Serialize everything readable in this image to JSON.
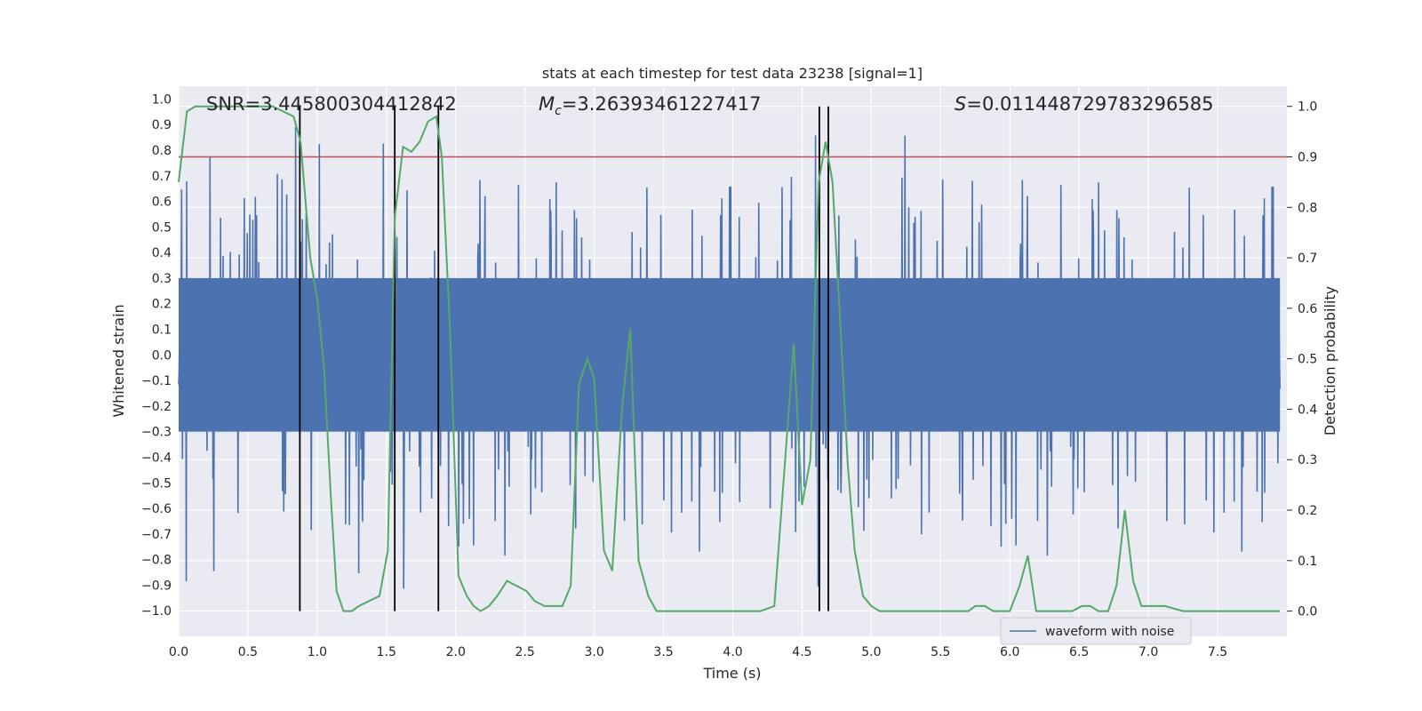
{
  "chart_data": {
    "type": "line",
    "title": "stats at each timestep for test data 23238 [signal=1]",
    "xlabel": "Time (s)",
    "ylabel": "Whitened strain",
    "y2label": "Detection probability",
    "xlim": [
      0.0,
      8.0
    ],
    "ylim": [
      -1.1,
      1.05
    ],
    "y2lim": [
      -0.05,
      1.04
    ],
    "xticks": [
      "0.0",
      "0.5",
      "1.0",
      "1.5",
      "2.0",
      "2.5",
      "3.0",
      "3.5",
      "4.0",
      "4.5",
      "5.0",
      "5.5",
      "6.0",
      "6.5",
      "7.0",
      "7.5"
    ],
    "yticks": [
      "1.0",
      "0.9",
      "0.8",
      "0.7",
      "0.6",
      "0.5",
      "0.4",
      "0.3",
      "0.2",
      "0.1",
      "0.0",
      "−0.1",
      "−0.2",
      "−0.3",
      "−0.4",
      "−0.5",
      "−0.6",
      "−0.7",
      "−0.8",
      "−0.9",
      "−1.0"
    ],
    "y2ticks": [
      "1.0",
      "0.9",
      "0.8",
      "0.7",
      "0.6",
      "0.5",
      "0.4",
      "0.3",
      "0.2",
      "0.1",
      "0.0"
    ],
    "annotations": {
      "snr": "SNR=3.445800304412842",
      "mc_symbol": "M",
      "mc_sub": "c",
      "mc_value": "=3.26393461227417",
      "s_symbol": "S",
      "s_value": "=0.011448729783296585"
    },
    "legend": {
      "label": "waveform with noise",
      "position": "lower-right"
    },
    "threshold": {
      "y2": 0.9,
      "color": "#c44e52"
    },
    "vertical_markers_x": [
      0.875,
      1.56,
      1.875,
      4.625,
      4.69
    ],
    "series": [
      {
        "name": "waveform with noise",
        "color": "#4c72b0",
        "kind": "noise",
        "core_amplitude": 0.3,
        "peak_amplitude_range": [
          -1.0,
          0.93
        ]
      },
      {
        "name": "detection probability",
        "color": "#55a868",
        "axis": "y2",
        "x": [
          0.0,
          0.06,
          0.12,
          0.25,
          0.4,
          0.55,
          0.68,
          0.83,
          0.88,
          0.95,
          1.0,
          1.05,
          1.1,
          1.14,
          1.19,
          1.25,
          1.3,
          1.45,
          1.51,
          1.56,
          1.62,
          1.68,
          1.74,
          1.8,
          1.86,
          1.9,
          1.96,
          2.02,
          2.08,
          2.13,
          2.18,
          2.24,
          2.3,
          2.37,
          2.44,
          2.51,
          2.57,
          2.64,
          2.7,
          2.77,
          2.83,
          2.89,
          2.95,
          3.0,
          3.07,
          3.13,
          3.2,
          3.26,
          3.32,
          3.39,
          3.45,
          3.5,
          3.56,
          3.63,
          3.77,
          4.0,
          4.2,
          4.3,
          4.44,
          4.5,
          4.56,
          4.62,
          4.67,
          4.72,
          4.78,
          4.83,
          4.88,
          4.94,
          5.0,
          5.06,
          5.2,
          5.5,
          5.7,
          5.75,
          5.82,
          5.88,
          6.0,
          6.07,
          6.13,
          6.19,
          6.26,
          6.45,
          6.52,
          6.58,
          6.64,
          6.71,
          6.77,
          6.83,
          6.89,
          6.95,
          7.01,
          7.12,
          7.25,
          7.5,
          7.75,
          7.95
        ],
        "values": [
          0.85,
          0.99,
          1.0,
          1.0,
          1.0,
          1.0,
          1.0,
          0.98,
          0.93,
          0.7,
          0.62,
          0.48,
          0.22,
          0.04,
          0.0,
          0.0,
          0.01,
          0.03,
          0.12,
          0.78,
          0.92,
          0.91,
          0.93,
          0.97,
          0.98,
          0.9,
          0.55,
          0.07,
          0.03,
          0.01,
          0.0,
          0.01,
          0.03,
          0.06,
          0.05,
          0.04,
          0.02,
          0.01,
          0.01,
          0.01,
          0.05,
          0.45,
          0.5,
          0.46,
          0.12,
          0.08,
          0.4,
          0.56,
          0.1,
          0.03,
          0.0,
          0.0,
          0.0,
          0.0,
          0.0,
          0.0,
          0.0,
          0.01,
          0.53,
          0.21,
          0.3,
          0.85,
          0.93,
          0.85,
          0.55,
          0.29,
          0.12,
          0.03,
          0.01,
          0.0,
          0.0,
          0.0,
          0.0,
          0.01,
          0.01,
          0.0,
          0.0,
          0.05,
          0.11,
          0.0,
          0.0,
          0.0,
          0.01,
          0.01,
          0.0,
          0.0,
          0.05,
          0.2,
          0.06,
          0.01,
          0.01,
          0.01,
          0.0,
          0.0,
          0.0,
          0.0
        ]
      }
    ]
  }
}
